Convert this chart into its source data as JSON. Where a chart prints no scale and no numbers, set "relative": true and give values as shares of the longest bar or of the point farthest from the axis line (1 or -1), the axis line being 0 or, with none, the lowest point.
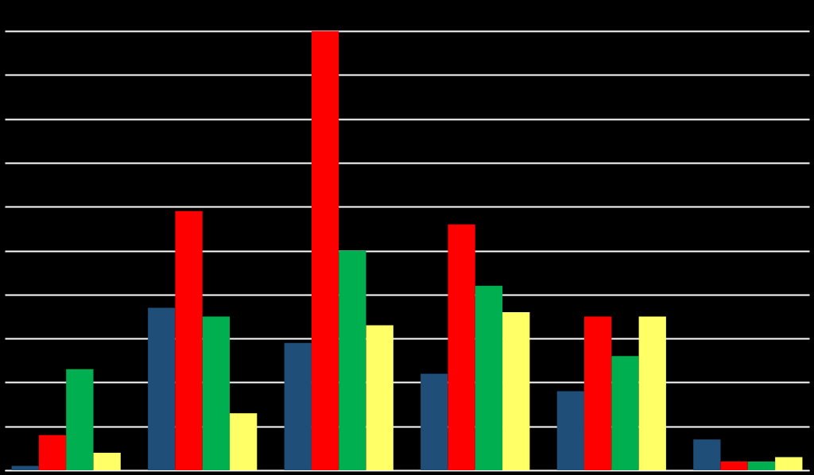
{
  "chart_data": {
    "type": "bar",
    "relative": true,
    "grid": "y",
    "legend": false,
    "categories": [
      null,
      null,
      null,
      null,
      null,
      null
    ],
    "series": [
      {
        "color": "#1f4e79",
        "values": [
          0.01,
          0.37,
          0.29,
          0.22,
          0.18,
          0.07
        ]
      },
      {
        "color": "#ff0000",
        "values": [
          0.08,
          0.59,
          1.0,
          0.56,
          0.35,
          0.02
        ]
      },
      {
        "color": "#00b050",
        "values": [
          0.23,
          0.35,
          0.5,
          0.42,
          0.26,
          0.02
        ]
      },
      {
        "color": "#ffff66",
        "values": [
          0.04,
          0.13,
          0.33,
          0.36,
          0.35,
          0.03
        ]
      }
    ]
  }
}
